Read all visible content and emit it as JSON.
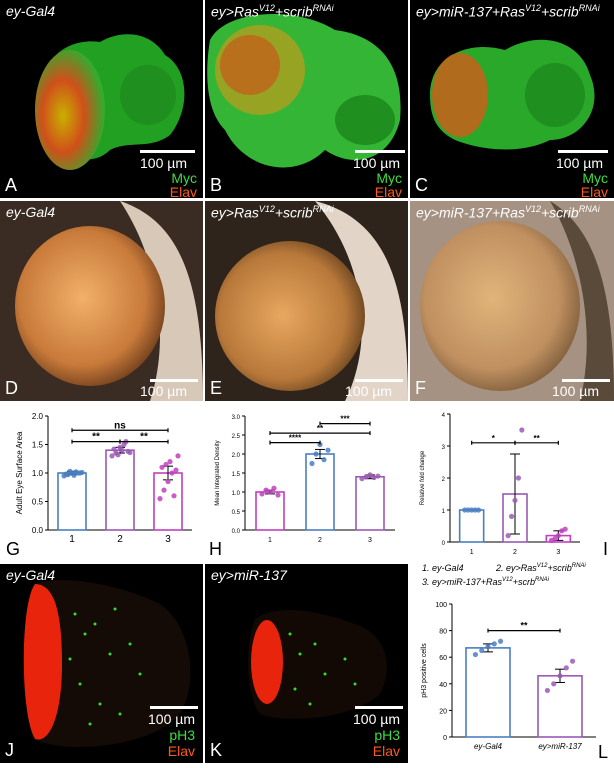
{
  "panels": {
    "A": {
      "letter": "A",
      "title_pre": "ey",
      "title_post": "-Gal4",
      "scale": "100 µm",
      "ch1": "Myc",
      "ch2": "Elav"
    },
    "B": {
      "letter": "B",
      "title_pre": "ey>Ras",
      "title_sup": "V12",
      "title_mid": "+scrib",
      "title_sup2": "RNAi",
      "scale": "100 µm",
      "ch1": "Myc",
      "ch2": "Elav"
    },
    "C": {
      "letter": "C",
      "title_pre": "ey>miR-137+Ras",
      "title_sup": "V12",
      "title_mid": "+scrib",
      "title_sup2": "RNAi",
      "scale": "100 µm",
      "ch1": "Myc",
      "ch2": "Elav"
    },
    "D": {
      "letter": "D",
      "title_pre": "ey",
      "title_post": "-Gal4",
      "scale": "100 µm"
    },
    "E": {
      "letter": "E",
      "title_pre": "ey>Ras",
      "title_sup": "V12",
      "title_mid": "+scrib",
      "title_sup2": "RNAi",
      "scale": "100 µm"
    },
    "F": {
      "letter": "F",
      "title_pre": "ey>miR-137+Ras",
      "title_sup": "V12",
      "title_mid": "+scrib",
      "title_sup2": "RNAi",
      "scale": "100 µm"
    },
    "J": {
      "letter": "J",
      "title_pre": "ey",
      "title_post": "-Gal4",
      "scale": "100 µm",
      "ch1": "pH3",
      "ch2": "Elav"
    },
    "K": {
      "letter": "K",
      "title_pre": "ey>miR-137",
      "scale": "100 µm",
      "ch1": "pH3",
      "ch2": "Elav"
    }
  },
  "letters": {
    "G": "G",
    "H": "H",
    "I": "I",
    "L": "L"
  },
  "legend": {
    "l1": "1. ey-Gal4",
    "l2_pre": "2. ey>Ras",
    "l2_sup": "V12",
    "l2_mid": "+scrib",
    "l2_sup2": "RNAi",
    "l3_pre": "3. ey>miR-137+Ras",
    "l3_sup": "V12",
    "l3_mid": "+scrb",
    "l3_sup2": "RNAi"
  },
  "chart_data": [
    {
      "id": "G",
      "type": "bar",
      "ylabel": "Adult Eye Surface Area",
      "categories": [
        "1",
        "2",
        "3"
      ],
      "values": [
        1.0,
        1.4,
        1.0
      ],
      "errors": [
        0.03,
        0.05,
        0.12
      ],
      "ylim": [
        0,
        2.0
      ],
      "yticks": [
        "0.0",
        "0.5",
        "1.0",
        "1.5",
        "2.0"
      ],
      "colors": [
        "#4a7fc1",
        "#9b59b6",
        "#c040c0"
      ],
      "points": [
        [
          0.95,
          0.97,
          1.0,
          1.02,
          1.0,
          0.98,
          1.03,
          0.96,
          1.0,
          1.01
        ],
        [
          1.3,
          1.35,
          1.45,
          1.5,
          1.38,
          1.42,
          1.32,
          1.4,
          1.55,
          1.36
        ],
        [
          0.55,
          0.7,
          0.85,
          1.0,
          1.05,
          1.1,
          1.15,
          1.2,
          0.6,
          1.3
        ]
      ],
      "sig": [
        {
          "from": 0,
          "to": 1,
          "label": "**",
          "level": 1.55
        },
        {
          "from": 1,
          "to": 2,
          "label": "**",
          "level": 1.55
        },
        {
          "from": 0,
          "to": 2,
          "label": "ns",
          "level": 1.75
        }
      ]
    },
    {
      "id": "H",
      "type": "bar",
      "ylabel": "Mean Integrated Density",
      "categories": [
        "1",
        "2",
        "3"
      ],
      "values": [
        1.0,
        2.0,
        1.4
      ],
      "errors": [
        0.05,
        0.12,
        0.05
      ],
      "ylim": [
        0,
        3.0
      ],
      "yticks": [
        "0.0",
        "0.5",
        "1.0",
        "1.5",
        "2.0",
        "2.5",
        "3.0"
      ],
      "colors": [
        "#c040c0",
        "#4a7fc1",
        "#9b59b6"
      ],
      "points": [
        [
          0.95,
          1.05,
          1.0,
          1.1,
          0.92
        ],
        [
          1.75,
          2.0,
          2.25,
          1.85,
          2.1
        ],
        [
          1.35,
          1.4,
          1.45,
          1.38,
          1.42
        ]
      ],
      "sig": [
        {
          "from": 0,
          "to": 1,
          "label": "****",
          "level": 2.3
        },
        {
          "from": 0,
          "to": 2,
          "label": "**",
          "level": 2.55
        },
        {
          "from": 1,
          "to": 2,
          "label": "***",
          "level": 2.8
        }
      ]
    },
    {
      "id": "I",
      "type": "bar",
      "ylabel": "Relative fold change",
      "categories": [
        "1",
        "2",
        "3"
      ],
      "values": [
        1.0,
        1.5,
        0.2
      ],
      "errors": [
        0.0,
        1.25,
        0.15
      ],
      "ylim": [
        0,
        4
      ],
      "yticks": [
        "0",
        "1",
        "2",
        "3",
        "4"
      ],
      "colors": [
        "#4a7fc1",
        "#9b59b6",
        "#c040c0"
      ],
      "points": [
        [
          1.0,
          1.0,
          1.0,
          1.0,
          1.0
        ],
        [
          0.2,
          0.8,
          1.3,
          2.0,
          3.5
        ],
        [
          0.05,
          0.1,
          0.2,
          0.35,
          0.4
        ]
      ],
      "sig": [
        {
          "from": 0,
          "to": 1,
          "label": "*",
          "level": 3.1
        },
        {
          "from": 1,
          "to": 2,
          "label": "**",
          "level": 3.1
        }
      ]
    },
    {
      "id": "L",
      "type": "bar",
      "ylabel": "pH3 positive cells",
      "categories": [
        "ey-Gal4",
        "ey>miR-137"
      ],
      "values": [
        67,
        46
      ],
      "errors": [
        3,
        5
      ],
      "ylim": [
        0,
        100
      ],
      "yticks": [
        "0",
        "20",
        "40",
        "60",
        "80",
        "100"
      ],
      "colors": [
        "#4a7fc1",
        "#9b59b6"
      ],
      "points": [
        [
          62,
          65,
          68,
          70,
          72
        ],
        [
          35,
          40,
          46,
          52,
          57
        ]
      ],
      "sig": [
        {
          "from": 0,
          "to": 1,
          "label": "**",
          "level": 80
        }
      ]
    }
  ]
}
